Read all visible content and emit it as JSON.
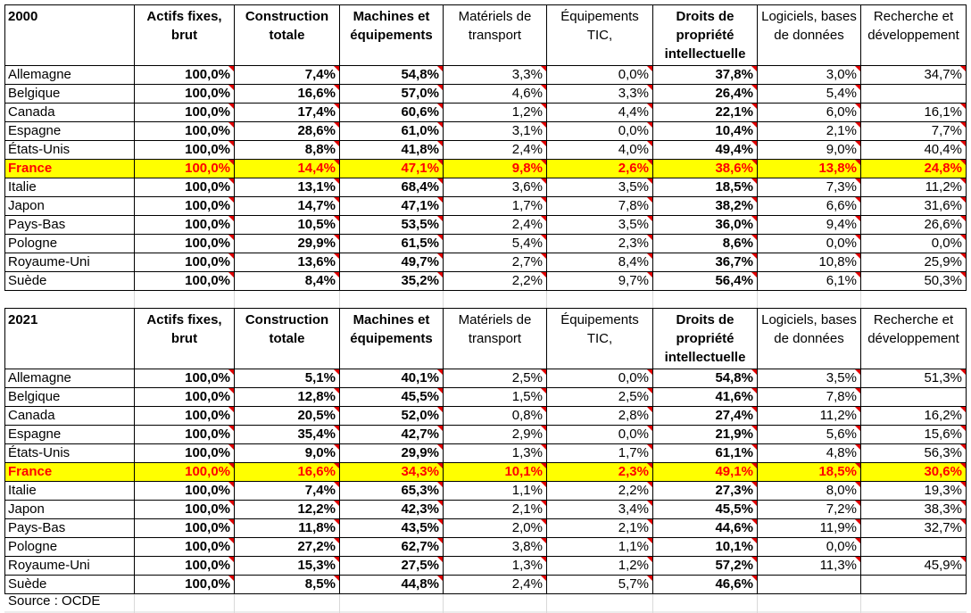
{
  "columns": [
    "Actifs fixes, brut",
    "Construction totale",
    "Machines et équipements",
    "Matériels de transport",
    "Équipements TIC,",
    "Droits de propriété intellectuelle",
    "Logiciels, bases de données",
    "Recherche et développement"
  ],
  "bold_columns": [
    0,
    1,
    2,
    5
  ],
  "highlight_color": "#ffff00",
  "highlight_text_color": "#ff0000",
  "comment_flag_color": "#e00000",
  "tables": [
    {
      "year": "2000",
      "rows": [
        {
          "country": "Allemagne",
          "values": [
            "100,0%",
            "7,4%",
            "54,8%",
            "3,3%",
            "0,0%",
            "37,8%",
            "3,0%",
            "34,7%"
          ]
        },
        {
          "country": "Belgique",
          "values": [
            "100,0%",
            "16,6%",
            "57,0%",
            "4,6%",
            "3,3%",
            "26,4%",
            "5,4%",
            ""
          ]
        },
        {
          "country": "Canada",
          "values": [
            "100,0%",
            "17,4%",
            "60,6%",
            "1,2%",
            "4,4%",
            "22,1%",
            "6,0%",
            "16,1%"
          ]
        },
        {
          "country": "Espagne",
          "values": [
            "100,0%",
            "28,6%",
            "61,0%",
            "3,1%",
            "0,0%",
            "10,4%",
            "2,1%",
            "7,7%"
          ]
        },
        {
          "country": "États-Unis",
          "values": [
            "100,0%",
            "8,8%",
            "41,8%",
            "2,4%",
            "4,0%",
            "49,4%",
            "9,0%",
            "40,4%"
          ]
        },
        {
          "country": "France",
          "highlight": true,
          "values": [
            "100,0%",
            "14,4%",
            "47,1%",
            "9,8%",
            "2,6%",
            "38,6%",
            "13,8%",
            "24,8%"
          ]
        },
        {
          "country": "Italie",
          "values": [
            "100,0%",
            "13,1%",
            "68,4%",
            "3,6%",
            "3,5%",
            "18,5%",
            "7,3%",
            "11,2%"
          ]
        },
        {
          "country": "Japon",
          "values": [
            "100,0%",
            "14,7%",
            "47,1%",
            "1,7%",
            "7,8%",
            "38,2%",
            "6,6%",
            "31,6%"
          ]
        },
        {
          "country": "Pays-Bas",
          "values": [
            "100,0%",
            "10,5%",
            "53,5%",
            "2,4%",
            "3,5%",
            "36,0%",
            "9,4%",
            "26,6%"
          ]
        },
        {
          "country": "Pologne",
          "values": [
            "100,0%",
            "29,9%",
            "61,5%",
            "5,4%",
            "2,3%",
            "8,6%",
            "0,0%",
            "0,0%"
          ]
        },
        {
          "country": "Royaume-Uni",
          "values": [
            "100,0%",
            "13,6%",
            "49,7%",
            "2,7%",
            "8,4%",
            "36,7%",
            "10,8%",
            "25,9%"
          ]
        },
        {
          "country": "Suède",
          "values": [
            "100,0%",
            "8,4%",
            "35,2%",
            "2,2%",
            "9,7%",
            "56,4%",
            "6,1%",
            "50,3%"
          ]
        }
      ]
    },
    {
      "year": "2021",
      "rows": [
        {
          "country": "Allemagne",
          "values": [
            "100,0%",
            "5,1%",
            "40,1%",
            "2,5%",
            "0,0%",
            "54,8%",
            "3,5%",
            "51,3%"
          ]
        },
        {
          "country": "Belgique",
          "values": [
            "100,0%",
            "12,8%",
            "45,5%",
            "1,5%",
            "2,5%",
            "41,6%",
            "7,8%",
            ""
          ]
        },
        {
          "country": "Canada",
          "values": [
            "100,0%",
            "20,5%",
            "52,0%",
            "0,8%",
            "2,8%",
            "27,4%",
            "11,2%",
            "16,2%"
          ]
        },
        {
          "country": "Espagne",
          "values": [
            "100,0%",
            "35,4%",
            "42,7%",
            "2,9%",
            "0,0%",
            "21,9%",
            "5,6%",
            "15,6%"
          ]
        },
        {
          "country": "États-Unis",
          "values": [
            "100,0%",
            "9,0%",
            "29,9%",
            "1,3%",
            "1,7%",
            "61,1%",
            "4,8%",
            "56,3%"
          ]
        },
        {
          "country": "France",
          "highlight": true,
          "values": [
            "100,0%",
            "16,6%",
            "34,3%",
            "10,1%",
            "2,3%",
            "49,1%",
            "18,5%",
            "30,6%"
          ]
        },
        {
          "country": "Italie",
          "values": [
            "100,0%",
            "7,4%",
            "65,3%",
            "1,1%",
            "2,2%",
            "27,3%",
            "8,0%",
            "19,3%"
          ]
        },
        {
          "country": "Japon",
          "values": [
            "100,0%",
            "12,2%",
            "42,3%",
            "2,1%",
            "3,4%",
            "45,5%",
            "7,2%",
            "38,3%"
          ]
        },
        {
          "country": "Pays-Bas",
          "values": [
            "100,0%",
            "11,8%",
            "43,5%",
            "2,0%",
            "2,1%",
            "44,6%",
            "11,9%",
            "32,7%"
          ]
        },
        {
          "country": "Pologne",
          "values": [
            "100,0%",
            "27,2%",
            "62,7%",
            "3,8%",
            "1,1%",
            "10,1%",
            "0,0%",
            ""
          ]
        },
        {
          "country": "Royaume-Uni",
          "values": [
            "100,0%",
            "15,3%",
            "27,5%",
            "1,3%",
            "1,2%",
            "57,2%",
            "11,3%",
            "45,9%"
          ]
        },
        {
          "country": "Suède",
          "values": [
            "100,0%",
            "8,5%",
            "44,8%",
            "2,4%",
            "5,7%",
            "46,6%",
            "",
            ""
          ]
        }
      ]
    }
  ],
  "source": "Source : OCDE"
}
